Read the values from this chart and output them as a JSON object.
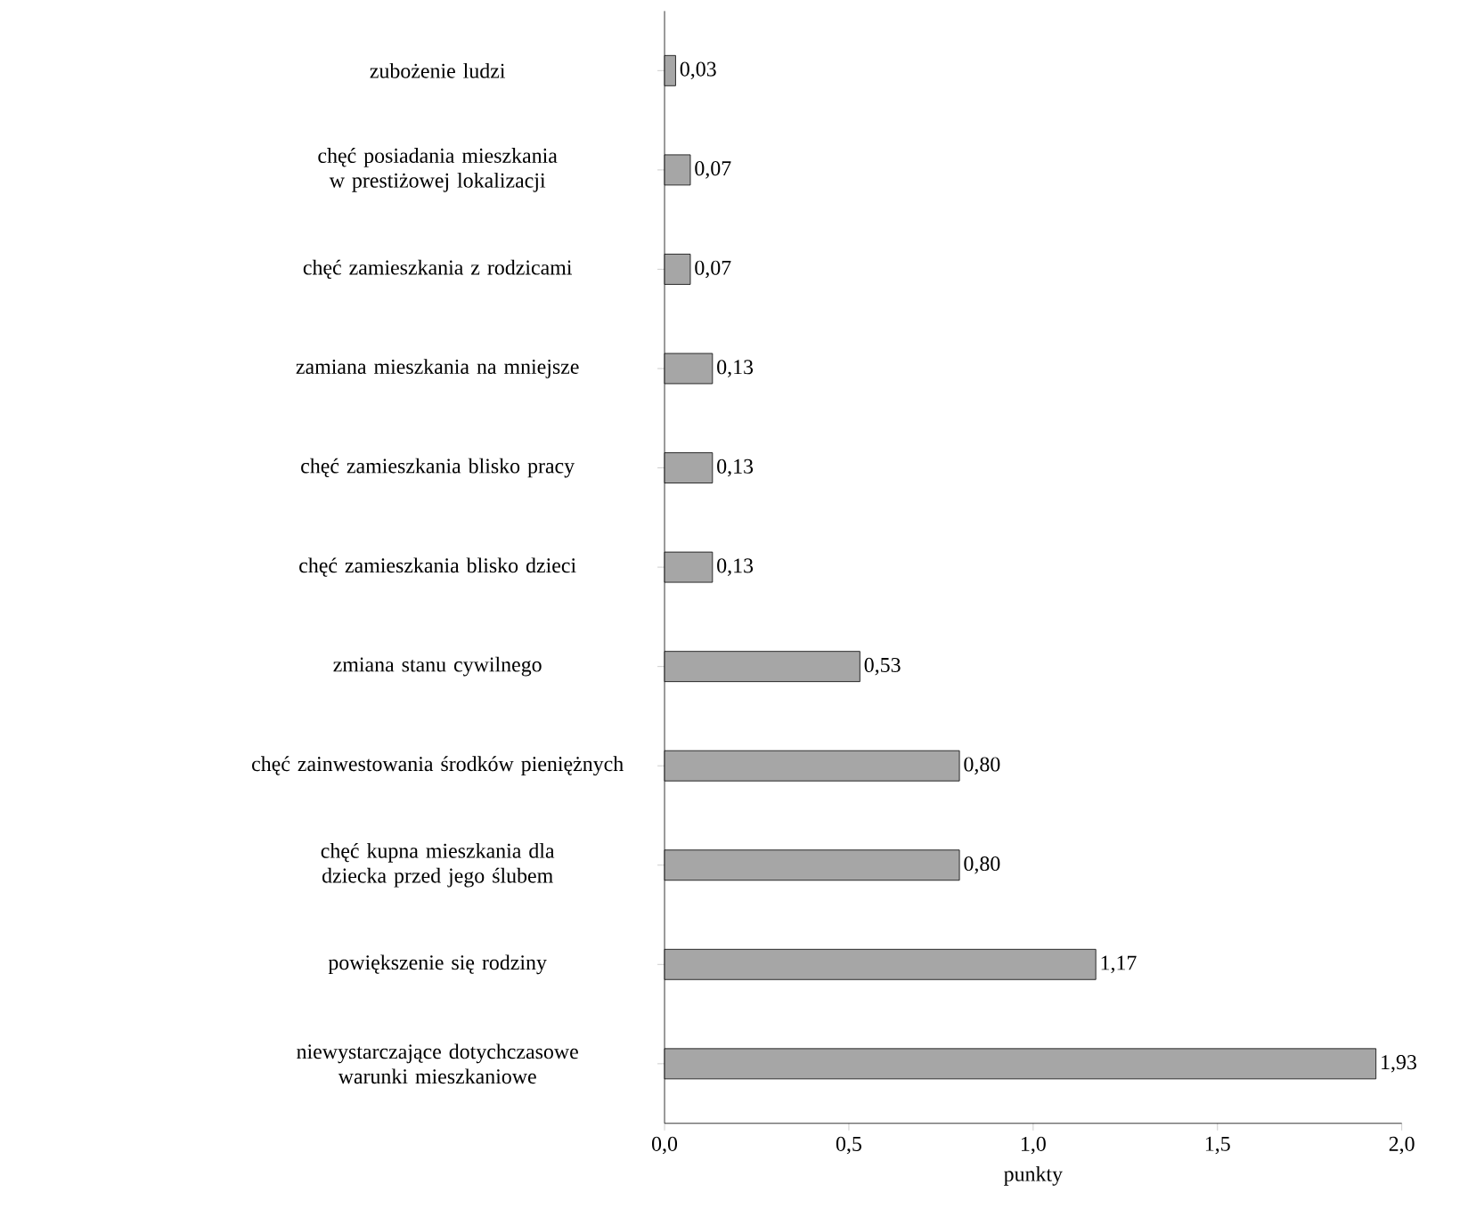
{
  "chart_data": {
    "type": "bar",
    "orientation": "horizontal",
    "xlabel": "punkty",
    "categories": [
      "zubożenie ludzi",
      "chęć posiadania mieszkania w prestiżowej lokalizacji",
      "chęć zamieszkania z rodzicami",
      "zamiana mieszkania na mniejsze",
      "chęć zamieszkania blisko pracy",
      "chęć zamieszkania blisko dzieci",
      "zmiana stanu cywilnego",
      "chęć zainwestowania środków pieniężnych",
      "chęć kupna mieszkania dla dziecka przed jego ślubem",
      "powiększenie się rodziny",
      "niewystarczające dotychczasowe warunki mieszkaniowe"
    ],
    "values": [
      0.03,
      0.07,
      0.07,
      0.13,
      0.13,
      0.13,
      0.53,
      0.8,
      0.8,
      1.17,
      1.93
    ],
    "value_labels": [
      "0,03",
      "0,07",
      "0,07",
      "0,13",
      "0,13",
      "0,13",
      "0,53",
      "0,80",
      "0,80",
      "1,17",
      "1,93"
    ],
    "color": "#a6a6a6",
    "xlim": [
      0,
      2
    ],
    "xticks": [
      {
        "value": 0,
        "label": "0,0"
      },
      {
        "value": 0.5,
        "label": "0,5"
      },
      {
        "value": 1,
        "label": "1,0"
      },
      {
        "value": 1.5,
        "label": "1,5"
      },
      {
        "value": 2,
        "label": "2,0"
      }
    ]
  }
}
